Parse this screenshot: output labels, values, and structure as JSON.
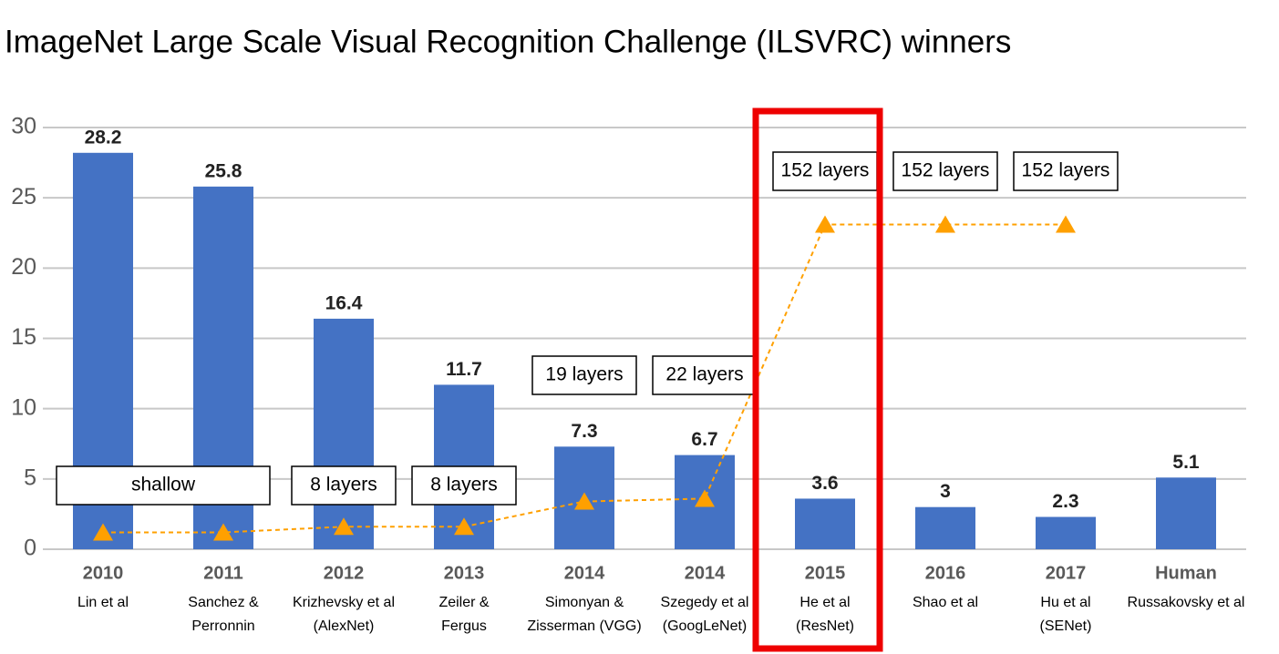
{
  "chart_data": {
    "type": "bar",
    "title": "ImageNet Large Scale Visual Recognition Challenge (ILSVRC) winners",
    "categories": [
      "2010",
      "2011",
      "2012",
      "2013",
      "2014",
      "2014",
      "2015",
      "2016",
      "2017",
      "Human"
    ],
    "authors": [
      [
        "Lin et al"
      ],
      [
        "Sanchez &",
        "Perronnin"
      ],
      [
        "Krizhevsky et al",
        "(AlexNet)"
      ],
      [
        "Zeiler &",
        "Fergus"
      ],
      [
        "Simonyan &",
        "Zisserman (VGG)"
      ],
      [
        "Szegedy et al",
        "(GoogLeNet)"
      ],
      [
        "He et al",
        "(ResNet)"
      ],
      [
        "Shao et al"
      ],
      [
        "Hu et al",
        "(SENet)"
      ],
      [
        "Russakovsky et al"
      ]
    ],
    "values": [
      28.2,
      25.8,
      16.4,
      11.7,
      7.3,
      6.7,
      3.6,
      3,
      2.3,
      5.1
    ],
    "color": "#4472c4",
    "series": [
      {
        "color": "#ffa000",
        "values": [
          1.2,
          1.2,
          1.6,
          1.6,
          3.4,
          3.6,
          23.1,
          23.1,
          23.1,
          null
        ]
      }
    ],
    "depth_labels": [
      "shallow",
      null,
      "8 layers",
      "8 layers",
      "19 layers",
      "22 layers",
      "152 layers",
      "152 layers",
      "152 layers",
      null
    ],
    "ylim": [
      0,
      30
    ],
    "yticks": [
      0,
      5,
      10,
      15,
      20,
      25,
      30
    ],
    "grid": true
  }
}
